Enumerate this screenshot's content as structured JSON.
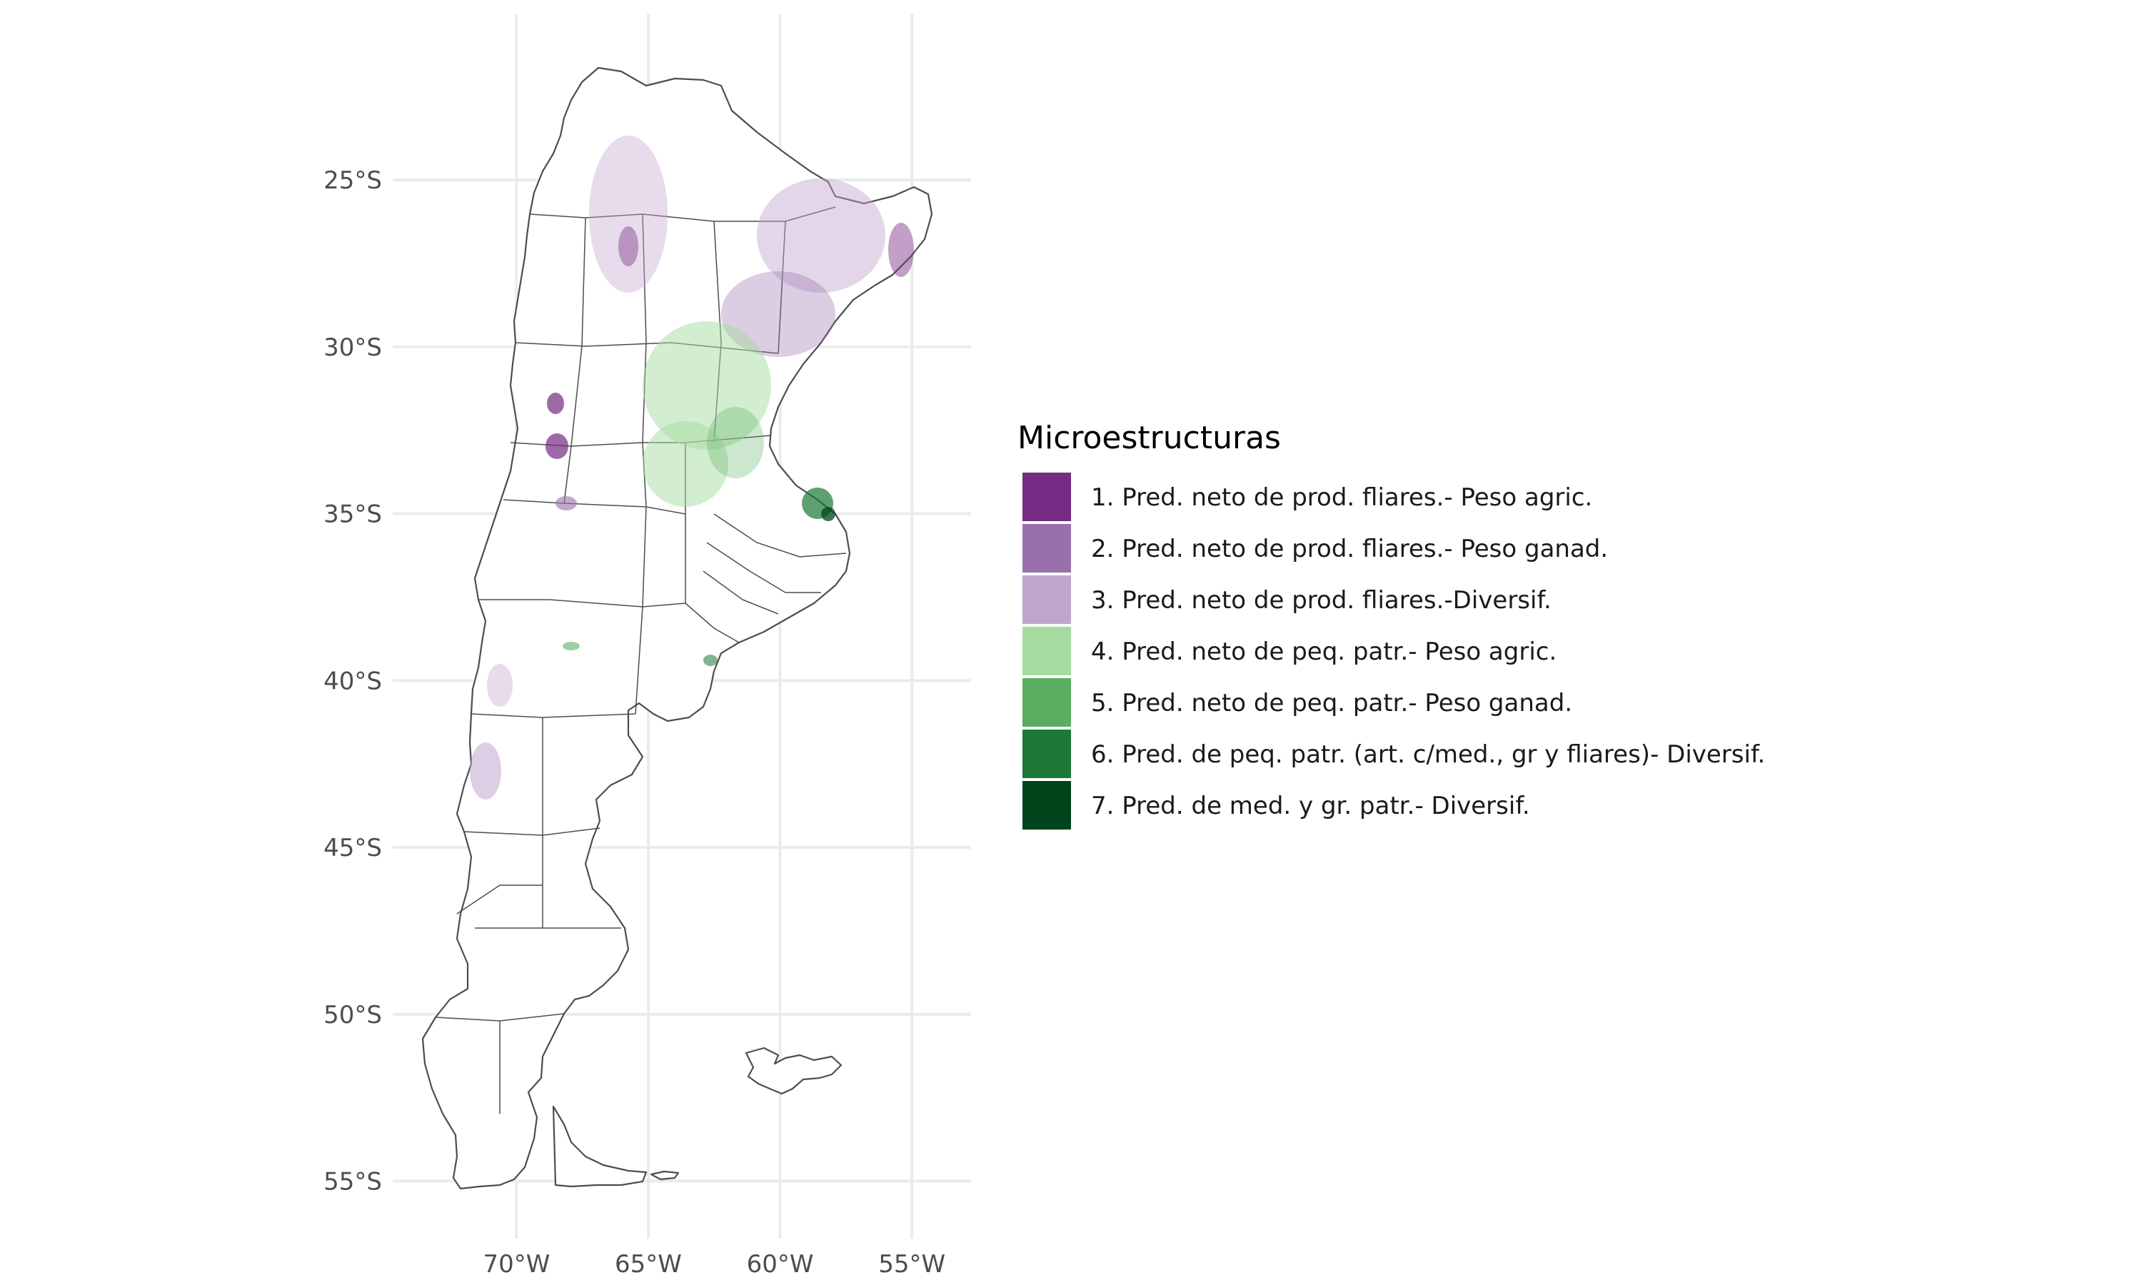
{
  "chart_data": {
    "type": "choropleth-map",
    "region": "Argentina",
    "grid": true,
    "legend_position": "right",
    "x_axis": {
      "ticks": [
        {
          "value": -70,
          "label": "70°W"
        },
        {
          "value": -65,
          "label": "65°W"
        },
        {
          "value": -60,
          "label": "60°W"
        },
        {
          "value": -55,
          "label": "55°W"
        }
      ],
      "range": [
        -74,
        -53
      ]
    },
    "y_axis": {
      "ticks": [
        {
          "value": -25,
          "label": "25°S"
        },
        {
          "value": -30,
          "label": "30°S"
        },
        {
          "value": -35,
          "label": "35°S"
        },
        {
          "value": -40,
          "label": "40°S"
        },
        {
          "value": -45,
          "label": "45°S"
        },
        {
          "value": -50,
          "label": "50°S"
        },
        {
          "value": -55,
          "label": "55°S"
        }
      ],
      "range": [
        -56,
        -21
      ]
    },
    "legend": {
      "title": "Microestructuras",
      "items": [
        {
          "label": "1. Pred. neto de prod. fliares.- Peso agric.",
          "color": "#762a83"
        },
        {
          "label": "2. Pred. neto de prod. fliares.- Peso ganad.",
          "color": "#9970ab"
        },
        {
          "label": "3. Pred. neto de prod. fliares.-Diversif.",
          "color": "#c2a5cf"
        },
        {
          "label": "4. Pred. neto de peq. patr.- Peso agric.",
          "color": "#a6dba0"
        },
        {
          "label": "5. Pred. neto de peq. patr.- Peso ganad.",
          "color": "#5aae61"
        },
        {
          "label": "6. Pred. de peq. patr. (art. c/med., gr y fliares)- Diversif.",
          "color": "#1b7837"
        },
        {
          "label": "7. Pred. de med. y gr. patr.- Diversif.",
          "color": "#00441b"
        }
      ]
    }
  }
}
